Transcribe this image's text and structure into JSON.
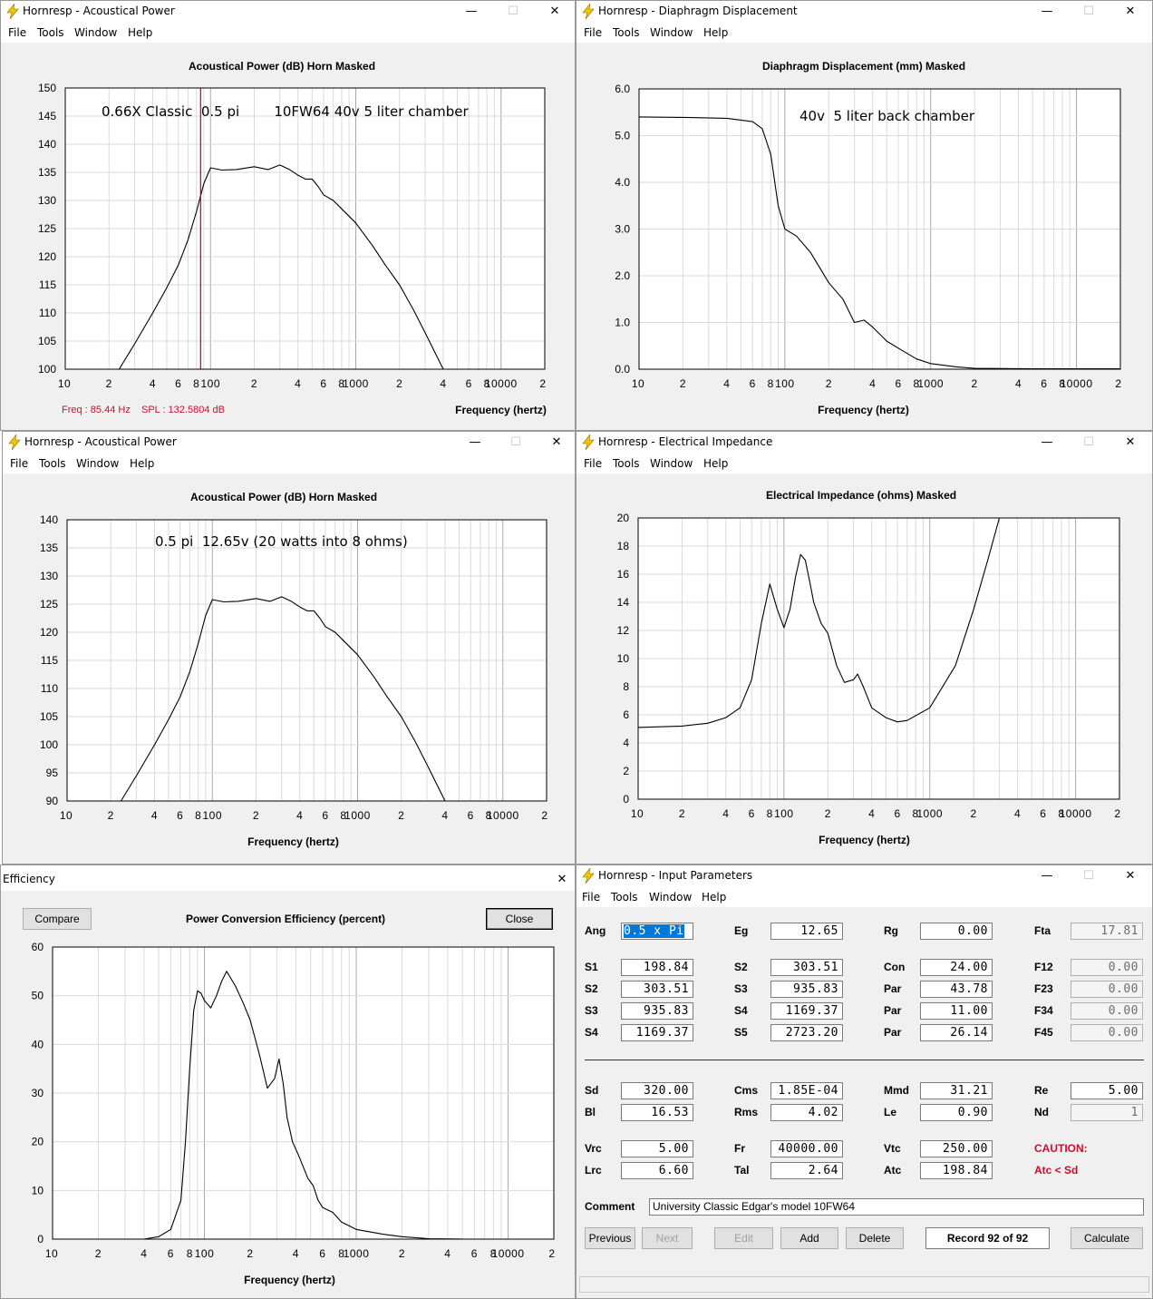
{
  "app_icon": "lightning-bolt-icon",
  "window_controls": {
    "minimize": "—",
    "maximize": "☐",
    "close": "✕"
  },
  "menu": [
    "File",
    "Tools",
    "Window",
    "Help"
  ],
  "freq_ticks": [
    "10",
    "2",
    "4",
    "6",
    "8",
    "100",
    "2",
    "4",
    "6",
    "8",
    "1000",
    "2",
    "4",
    "6",
    "8",
    "10000",
    "2"
  ],
  "x_axis_label": "Frequency (hertz)",
  "windows": {
    "ap1": {
      "title": "Hornresp - Acoustical Power",
      "chart_title": "Acoustical Power (dB)   Horn   Masked",
      "annotation": "0.66X Classic  0.5 pi        10FW64 40v 5 liter chamber",
      "status_freq": "Freq : 85.44 Hz",
      "status_spl": "SPL : 132.5804 dB"
    },
    "dd": {
      "title": "Hornresp - Diaphragm Displacement",
      "chart_title": "Diaphragm Displacement (mm)   Masked",
      "annotation": "40v  5 liter back chamber"
    },
    "ap2": {
      "title": "Hornresp - Acoustical Power",
      "chart_title": "Acoustical Power (dB)   Horn   Masked",
      "annotation": "0.5 pi  12.65v (20 watts into 8 ohms)"
    },
    "ei": {
      "title": "Hornresp - Electrical Impedance",
      "chart_title": "Electrical Impedance (ohms)   Masked"
    },
    "eff": {
      "title": "Efficiency",
      "chart_title": "Power Conversion Efficiency (percent)",
      "compare_label": "Compare",
      "close_label": "Close"
    },
    "ip": {
      "title": "Hornresp - Input Parameters",
      "comment_label": "Comment",
      "comment_value": "University Classic Edgar's model 10FW64",
      "caution_1": "CAUTION:",
      "caution_2": "Atc < Sd",
      "buttons": {
        "previous": "Previous",
        "next": "Next",
        "edit": "Edit",
        "add": "Add",
        "delete": "Delete",
        "calculate": "Calculate"
      },
      "record": "Record 92 of 92",
      "rows1": [
        [
          [
            "Ang",
            "0.5 x Pi"
          ],
          [
            "Eg",
            "12.65"
          ],
          [
            "Rg",
            "0.00"
          ],
          [
            "Fta",
            "17.81"
          ]
        ]
      ],
      "rows2": [
        [
          [
            "S1",
            "198.84"
          ],
          [
            "S2",
            "303.51"
          ],
          [
            "Con",
            "24.00"
          ],
          [
            "F12",
            "0.00"
          ]
        ],
        [
          [
            "S2",
            "303.51"
          ],
          [
            "S3",
            "935.83"
          ],
          [
            "Par",
            "43.78"
          ],
          [
            "F23",
            "0.00"
          ]
        ],
        [
          [
            "S3",
            "935.83"
          ],
          [
            "S4",
            "1169.37"
          ],
          [
            "Par",
            "11.00"
          ],
          [
            "F34",
            "0.00"
          ]
        ],
        [
          [
            "S4",
            "1169.37"
          ],
          [
            "S5",
            "2723.20"
          ],
          [
            "Par",
            "26.14"
          ],
          [
            "F45",
            "0.00"
          ]
        ]
      ],
      "rows3": [
        [
          [
            "Sd",
            "320.00"
          ],
          [
            "Cms",
            "1.85E-04"
          ],
          [
            "Mmd",
            "31.21"
          ],
          [
            "Re",
            "5.00"
          ]
        ],
        [
          [
            "Bl",
            "16.53"
          ],
          [
            "Rms",
            "4.02"
          ],
          [
            "Le",
            "0.90"
          ],
          [
            "Nd",
            "1"
          ]
        ]
      ],
      "rows4": [
        [
          [
            "Vrc",
            "5.00"
          ],
          [
            "Fr",
            "40000.00"
          ],
          [
            "Vtc",
            "250.00"
          ]
        ],
        [
          [
            "Lrc",
            "6.60"
          ],
          [
            "Tal",
            "2.64"
          ],
          [
            "Atc",
            "198.84"
          ]
        ]
      ]
    }
  },
  "chart_data": [
    {
      "id": "ap1",
      "type": "line",
      "title": "Acoustical Power (dB)   Horn   Masked",
      "xlabel": "Frequency (hertz)",
      "ylabel": "",
      "x_scale": "log",
      "xlim": [
        10,
        20000
      ],
      "ylim": [
        100,
        150
      ],
      "yticks": [
        "100",
        "105",
        "110",
        "115",
        "120",
        "125",
        "130",
        "135",
        "140",
        "145",
        "150"
      ],
      "grid": true,
      "cursor_x": 85.44,
      "cursor_color": "#c00000",
      "series": [
        {
          "x": [
            23.5,
            30,
            40,
            50,
            60,
            70,
            80,
            90,
            100,
            120,
            150,
            200,
            250,
            300,
            350,
            400,
            450,
            500,
            550,
            600,
            700,
            800,
            1000,
            1300,
            1600,
            2000,
            2500,
            3000,
            4000
          ],
          "y": [
            100,
            104.5,
            110,
            114.5,
            118.5,
            123,
            128,
            133,
            135.8,
            135.4,
            135.5,
            136,
            135.5,
            136.3,
            135.5,
            134.5,
            133.8,
            133.8,
            132.5,
            131,
            130,
            128.5,
            126,
            122,
            118.5,
            115,
            110.5,
            106.5,
            100
          ]
        }
      ]
    },
    {
      "id": "dd",
      "type": "line",
      "title": "Diaphragm Displacement (mm)   Masked",
      "xlabel": "Frequency (hertz)",
      "ylabel": "",
      "x_scale": "log",
      "xlim": [
        10,
        20000
      ],
      "ylim": [
        0,
        6
      ],
      "yticks": [
        "0.0",
        "1.0",
        "2.0",
        "3.0",
        "4.0",
        "5.0",
        "6.0"
      ],
      "grid": true,
      "series": [
        {
          "x": [
            10,
            20,
            40,
            60,
            70,
            80,
            90,
            100,
            120,
            150,
            200,
            250,
            300,
            350,
            400,
            500,
            600,
            800,
            1000,
            1500,
            2000,
            5000,
            20000
          ],
          "y": [
            5.4,
            5.39,
            5.37,
            5.3,
            5.15,
            4.6,
            3.5,
            3.0,
            2.85,
            2.5,
            1.85,
            1.5,
            1.0,
            1.05,
            0.9,
            0.6,
            0.45,
            0.22,
            0.12,
            0.05,
            0.02,
            0.01,
            0.01
          ]
        }
      ]
    },
    {
      "id": "ap2",
      "type": "line",
      "title": "Acoustical Power (dB)   Horn   Masked",
      "xlabel": "Frequency (hertz)",
      "ylabel": "",
      "x_scale": "log",
      "xlim": [
        10,
        20000
      ],
      "ylim": [
        90,
        140
      ],
      "yticks": [
        "90",
        "95",
        "100",
        "105",
        "110",
        "115",
        "120",
        "125",
        "130",
        "135",
        "140"
      ],
      "grid": true,
      "series": [
        {
          "x": [
            23.5,
            30,
            40,
            50,
            60,
            70,
            80,
            90,
            100,
            120,
            150,
            200,
            250,
            300,
            350,
            400,
            450,
            500,
            550,
            600,
            700,
            800,
            1000,
            1300,
            1600,
            2000,
            2500,
            3000,
            4000
          ],
          "y": [
            90,
            94.5,
            100,
            104.5,
            108.5,
            113,
            118,
            123,
            125.8,
            125.4,
            125.5,
            126,
            125.5,
            126.3,
            125.5,
            124.5,
            123.8,
            123.8,
            122.5,
            121,
            120,
            118.5,
            116,
            112,
            108.5,
            105,
            100.5,
            96.5,
            90
          ]
        }
      ]
    },
    {
      "id": "ei",
      "type": "line",
      "title": "Electrical Impedance (ohms)   Masked",
      "xlabel": "Frequency (hertz)",
      "ylabel": "",
      "x_scale": "log",
      "xlim": [
        10,
        20000
      ],
      "ylim": [
        0,
        20
      ],
      "yticks": [
        "0",
        "2",
        "4",
        "6",
        "8",
        "10",
        "12",
        "14",
        "16",
        "18",
        "20"
      ],
      "grid": true,
      "series": [
        {
          "x": [
            10,
            20,
            30,
            40,
            50,
            60,
            70,
            80,
            90,
            100,
            110,
            120,
            130,
            140,
            150,
            160,
            180,
            200,
            230,
            260,
            300,
            320,
            350,
            400,
            500,
            600,
            700,
            1000,
            1500,
            2000,
            2500,
            3000
          ],
          "y": [
            5.1,
            5.2,
            5.4,
            5.8,
            6.5,
            8.5,
            12.5,
            15.3,
            13.5,
            12.2,
            13.5,
            15.8,
            17.4,
            17.0,
            15.5,
            14.0,
            12.5,
            11.8,
            9.5,
            8.3,
            8.5,
            8.9,
            8.0,
            6.5,
            5.8,
            5.5,
            5.6,
            6.5,
            9.5,
            13.5,
            17.0,
            20.0
          ]
        }
      ]
    },
    {
      "id": "eff",
      "type": "line",
      "title": "Power Conversion Efficiency (percent)",
      "xlabel": "Frequency (hertz)",
      "ylabel": "",
      "x_scale": "log",
      "xlim": [
        10,
        20000
      ],
      "ylim": [
        0,
        60
      ],
      "yticks": [
        "0",
        "10",
        "20",
        "30",
        "40",
        "50",
        "60"
      ],
      "grid": true,
      "series": [
        {
          "x": [
            40,
            50,
            60,
            70,
            75,
            80,
            85,
            90,
            95,
            100,
            110,
            120,
            130,
            140,
            160,
            180,
            200,
            230,
            260,
            290,
            310,
            330,
            350,
            380,
            420,
            480,
            520,
            560,
            600,
            700,
            800,
            1000,
            1500,
            2000,
            3000,
            5000,
            10000
          ],
          "y": [
            0,
            0.5,
            2,
            8,
            20,
            35,
            47,
            51,
            50.5,
            49,
            47.5,
            50,
            53,
            55,
            52,
            48.5,
            45,
            38,
            31,
            33,
            37,
            32,
            25,
            20,
            17,
            12.5,
            11,
            8,
            6.5,
            5.5,
            3.5,
            2,
            1,
            0.5,
            0.1,
            0,
            0
          ]
        }
      ]
    }
  ]
}
